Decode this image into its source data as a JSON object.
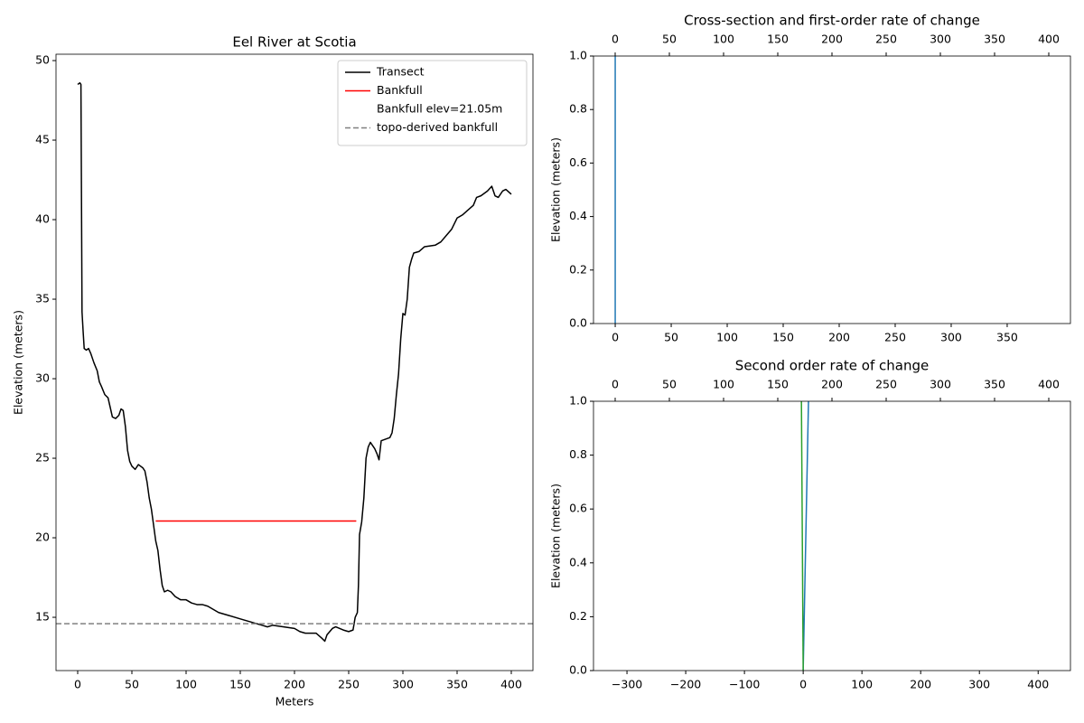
{
  "chart_data": [
    {
      "type": "line",
      "title": "Eel River at Scotia",
      "xlabel": "Meters",
      "ylabel": "Elevation (meters)",
      "xlim": [
        -20,
        420
      ],
      "ylim": [
        11.65,
        50.4
      ],
      "xticks": [
        0,
        50,
        100,
        150,
        200,
        250,
        300,
        350,
        400
      ],
      "yticks": [
        15,
        20,
        25,
        30,
        35,
        40,
        45,
        50
      ],
      "legend": "upper right",
      "series": [
        {
          "name": "Transect",
          "color": "#000000",
          "x": [
            0,
            2,
            3,
            4,
            5,
            6,
            8,
            10,
            12,
            15,
            18,
            20,
            22,
            25,
            28,
            30,
            32,
            35,
            38,
            40,
            42,
            44,
            46,
            48,
            50,
            53,
            56,
            60,
            62,
            64,
            66,
            68,
            70,
            72,
            74,
            76,
            78,
            80,
            83,
            86,
            90,
            95,
            100,
            105,
            110,
            115,
            120,
            125,
            130,
            140,
            150,
            160,
            170,
            175,
            180,
            190,
            200,
            205,
            210,
            220,
            225,
            228,
            230,
            235,
            238,
            245,
            250,
            254,
            256,
            258,
            259,
            260,
            262,
            264,
            266,
            268,
            270,
            272,
            274,
            276,
            278,
            280,
            284,
            288,
            290,
            292,
            294,
            296,
            298,
            300,
            302,
            304,
            306,
            308,
            310,
            315,
            320,
            330,
            335,
            340,
            345,
            350,
            355,
            360,
            365,
            368,
            372,
            378,
            382,
            385,
            388,
            392,
            395,
            400
          ],
          "values": [
            48.5,
            48.6,
            48.5,
            34.2,
            33,
            31.9,
            31.8,
            31.9,
            31.6,
            31.0,
            30.5,
            29.8,
            29.5,
            29.0,
            28.8,
            28.2,
            27.6,
            27.5,
            27.7,
            28.1,
            28.0,
            27.0,
            25.5,
            24.8,
            24.5,
            24.3,
            24.6,
            24.4,
            24.2,
            23.5,
            22.5,
            21.8,
            20.8,
            19.8,
            19.2,
            18.0,
            17.0,
            16.6,
            16.7,
            16.6,
            16.3,
            16.1,
            16.1,
            15.9,
            15.8,
            15.8,
            15.7,
            15.5,
            15.3,
            15.1,
            14.9,
            14.7,
            14.5,
            14.4,
            14.5,
            14.4,
            14.3,
            14.1,
            14.0,
            14.0,
            13.7,
            13.5,
            13.9,
            14.3,
            14.4,
            14.2,
            14.1,
            14.2,
            15.0,
            15.3,
            17.0,
            20.2,
            21.0,
            22.5,
            25.0,
            25.7,
            26.0,
            25.8,
            25.6,
            25.3,
            24.9,
            26.1,
            26.2,
            26.3,
            26.6,
            27.5,
            29.0,
            30.3,
            32.5,
            34.1,
            34.0,
            35.0,
            37.0,
            37.5,
            37.9,
            38.0,
            38.3,
            38.4,
            38.6,
            39.0,
            39.4,
            40.1,
            40.3,
            40.6,
            40.9,
            41.4,
            41.5,
            41.8,
            42.1,
            41.5,
            41.4,
            41.8,
            41.9,
            41.6
          ]
        },
        {
          "name": "Bankfull",
          "color": "#ff0000",
          "x": [
            72,
            257
          ],
          "values": [
            21.05,
            21.05
          ]
        },
        {
          "name": "Bankfull elev=21.05m",
          "color": "none"
        },
        {
          "name": "topo-derived bankfull",
          "color": "#808080",
          "linestyle": "dashed",
          "hline": 14.6
        }
      ]
    },
    {
      "type": "line",
      "title": "Cross-section and first-order rate of change",
      "ylabel": "Elevation (meters)",
      "xlim": [
        -19.4,
        406.5
      ],
      "ylim": [
        0,
        1
      ],
      "xticks": [
        0,
        50,
        100,
        150,
        200,
        250,
        300,
        350
      ],
      "x2lim": [
        -20,
        420
      ],
      "x2ticks": [
        0,
        50,
        100,
        150,
        200,
        250,
        300,
        350,
        400
      ],
      "yticks": [
        0.0,
        0.2,
        0.4,
        0.6,
        0.8,
        1.0
      ],
      "series": [
        {
          "color": "#1f77b4",
          "x": [
            0,
            0
          ],
          "values": [
            0,
            1
          ]
        }
      ]
    },
    {
      "type": "line",
      "title": "Second order rate of change",
      "ylabel": "Elevation (meters)",
      "xlim": [
        -357,
        455
      ],
      "ylim": [
        0,
        1
      ],
      "xticks": [
        {
          "value": -300,
          "label": "−300"
        },
        {
          "value": -200,
          "label": "−200"
        },
        {
          "value": -100,
          "label": "−100"
        },
        0,
        100,
        200,
        300,
        400
      ],
      "x2lim": [
        -20,
        420
      ],
      "x2ticks": [
        0,
        50,
        100,
        150,
        200,
        250,
        300,
        350,
        400
      ],
      "yticks": [
        0.0,
        0.2,
        0.4,
        0.6,
        0.8,
        1.0
      ],
      "series": [
        {
          "color": "#1f77b4",
          "x": [
            0,
            9
          ],
          "values": [
            0,
            1
          ]
        },
        {
          "color": "#2ca02c",
          "x": [
            0,
            -3
          ],
          "values": [
            0,
            1
          ]
        }
      ]
    }
  ]
}
